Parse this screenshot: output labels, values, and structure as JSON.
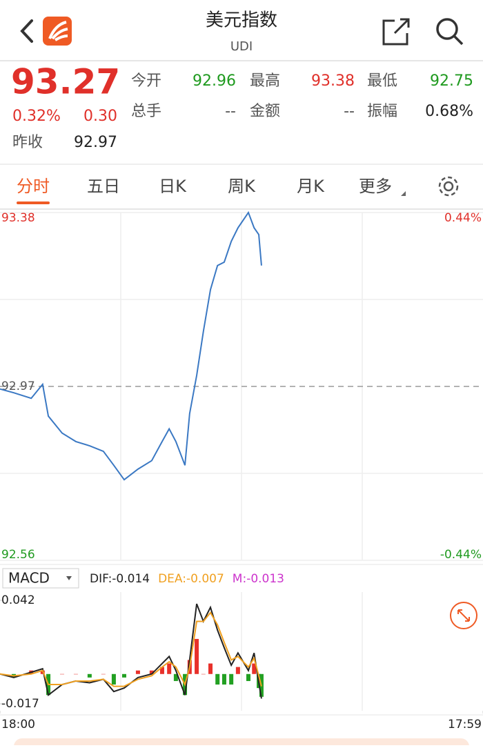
{
  "header": {
    "title": "美元指数",
    "subtitle": "UDI"
  },
  "quote": {
    "price": "93.27",
    "change_pct": "0.32%",
    "change": "0.30",
    "prev_close_label": "昨收",
    "prev_close": "92.97"
  },
  "stats": [
    [
      {
        "label": "今开",
        "value": "92.96"
      },
      {
        "label": "最高",
        "value": "93.38"
      },
      {
        "label": "最低",
        "value": "92.75"
      }
    ],
    [
      {
        "label": "总手",
        "value": "--"
      },
      {
        "label": "金额",
        "value": "--"
      },
      {
        "label": "振幅",
        "value": "0.68%"
      }
    ]
  ],
  "tabs": [
    "分时",
    "五日",
    "日K",
    "周K",
    "月K",
    "更多"
  ],
  "chart_data": [
    {
      "type": "line",
      "x": [
        0,
        41,
        93,
        127,
        144,
        185,
        226,
        267,
        308,
        339,
        370,
        411,
        452,
        483,
        504,
        524,
        551,
        565,
        586,
        606,
        627,
        648,
        668,
        689,
        709,
        740,
        757,
        771,
        779
      ],
      "xlim": [
        0,
        1439
      ],
      "series": [
        {
          "color": "#3a78c3",
          "values": [
            92.964,
            92.955,
            92.942,
            92.975,
            92.9,
            92.86,
            92.84,
            92.83,
            92.817,
            92.784,
            92.75,
            92.775,
            92.795,
            92.84,
            92.87,
            92.84,
            92.784,
            92.906,
            92.996,
            93.1,
            93.198,
            93.255,
            93.263,
            93.312,
            93.344,
            93.38,
            93.344,
            93.328,
            93.255
          ]
        }
      ],
      "ylim": [
        92.56,
        93.38
      ],
      "yticks": [
        92.56,
        92.97,
        93.38
      ],
      "y2lim": [
        -0.44,
        0.44
      ],
      "y2ticks": [
        {
          "value": -0.44,
          "label": "-0.44%"
        },
        {
          "value": 0.44,
          "label": "0.44%"
        }
      ]
    },
    {
      "type": "macd",
      "indicator": "MACD",
      "x": [
        0,
        41,
        93,
        127,
        144,
        185,
        226,
        267,
        308,
        339,
        370,
        411,
        452,
        483,
        504,
        524,
        551,
        565,
        586,
        606,
        627,
        648,
        668,
        689,
        709,
        740,
        757,
        771,
        779
      ],
      "xlim": [
        0,
        1439
      ],
      "xticks": [
        {
          "value": 0,
          "label": "18:00"
        },
        {
          "value": 1439,
          "label": "17:59"
        }
      ],
      "series": [
        {
          "name": "DIF:-0.014",
          "color": "#222222",
          "values": [
            0.0,
            -0.002,
            0.001,
            0.003,
            -0.012,
            -0.006,
            -0.004,
            -0.005,
            -0.003,
            -0.01,
            -0.008,
            -0.002,
            0.0,
            0.006,
            0.01,
            0.002,
            -0.012,
            0.008,
            0.04,
            0.03,
            0.038,
            0.025,
            0.015,
            0.005,
            0.012,
            0.002,
            0.012,
            -0.005,
            -0.014
          ]
        },
        {
          "name": "DEA:-0.007",
          "color": "#f0a020",
          "values": [
            0.0,
            -0.001,
            0.0,
            0.002,
            -0.006,
            -0.006,
            -0.004,
            -0.004,
            -0.003,
            -0.007,
            -0.007,
            -0.003,
            -0.001,
            0.004,
            0.007,
            0.004,
            -0.006,
            0.004,
            0.03,
            0.03,
            0.035,
            0.028,
            0.018,
            0.008,
            0.01,
            0.004,
            0.009,
            -0.001,
            -0.007
          ]
        },
        {
          "name": "M:-0.013",
          "color": "#cc33cc",
          "values": [
            0.0,
            -0.002,
            0.002,
            0.002,
            -0.012,
            0.0,
            0.0,
            -0.002,
            0.0,
            -0.006,
            -0.002,
            0.002,
            0.002,
            0.004,
            0.006,
            -0.004,
            -0.012,
            0.008,
            0.02,
            0.0,
            0.006,
            -0.006,
            -0.006,
            -0.006,
            0.004,
            -0.004,
            0.006,
            -0.008,
            -0.013
          ]
        }
      ],
      "bar_colors": {
        "up": "#e8302a",
        "down": "#22a022"
      },
      "ylim": [
        -0.017,
        0.042
      ],
      "yticks": [
        -0.017,
        0.042
      ]
    }
  ]
}
